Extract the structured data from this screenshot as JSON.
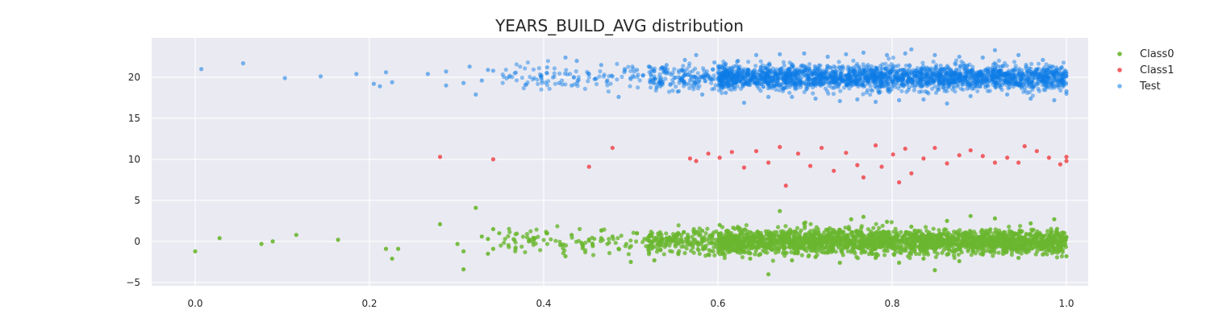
{
  "chart_data": {
    "type": "scatter",
    "title": "YEARS_BUILD_AVG distribution",
    "xlabel": "",
    "ylabel": "",
    "xlim": [
      -0.05,
      1.025
    ],
    "ylim": [
      -5.4,
      24.8
    ],
    "x_ticks": [
      0.0,
      0.2,
      0.4,
      0.6,
      0.8,
      1.0
    ],
    "x_tick_labels": [
      "0.0",
      "0.2",
      "0.4",
      "0.6",
      "0.8",
      "1.0"
    ],
    "y_ticks": [
      -5,
      0,
      5,
      10,
      15,
      20
    ],
    "y_tick_labels": [
      "−5",
      "0",
      "5",
      "10",
      "15",
      "20"
    ],
    "grid": true,
    "legend_position": "outside top-right",
    "background": "#eaeaf2",
    "series": [
      {
        "name": "Class0",
        "color": "#6ab72f",
        "center": 0,
        "points": [
          [
            0.0,
            -1.2
          ],
          [
            0.028,
            0.4
          ],
          [
            0.076,
            -0.3
          ],
          [
            0.089,
            0.0
          ],
          [
            0.116,
            0.8
          ],
          [
            0.164,
            0.2
          ],
          [
            0.219,
            -0.9
          ],
          [
            0.226,
            -2.1
          ],
          [
            0.233,
            -0.9
          ],
          [
            0.281,
            2.1
          ],
          [
            0.301,
            -0.3
          ],
          [
            0.308,
            -1.2
          ],
          [
            0.308,
            -3.4
          ],
          [
            0.322,
            4.1
          ],
          [
            0.329,
            0.6
          ],
          [
            0.336,
            -1.5
          ],
          [
            0.336,
            0.3
          ],
          [
            0.342,
            1.5
          ],
          [
            0.342,
            -0.9
          ],
          [
            0.349,
            1.0
          ],
          [
            0.384,
            0.2
          ],
          [
            0.39,
            0.4
          ],
          [
            0.404,
            1.0
          ],
          [
            0.425,
            -1.8
          ],
          [
            0.432,
            0.8
          ],
          [
            0.445,
            -0.6
          ],
          [
            0.452,
            0.1
          ],
          [
            0.466,
            0.4
          ],
          [
            0.479,
            0.6
          ],
          [
            0.486,
            -0.9
          ],
          [
            0.5,
            -2.5
          ],
          [
            0.507,
            1.0
          ],
          [
            0.521,
            0.6
          ],
          [
            0.527,
            -2.3
          ],
          [
            0.541,
            0.4
          ],
          [
            0.555,
            0.9
          ],
          [
            0.568,
            -0.4
          ],
          [
            0.582,
            1.3
          ],
          [
            0.589,
            -1.6
          ],
          [
            0.602,
            2.0
          ],
          [
            0.616,
            -0.1
          ],
          [
            0.623,
            1.6
          ],
          [
            0.637,
            -2.1
          ],
          [
            0.644,
            0.5
          ],
          [
            0.658,
            -4.0
          ],
          [
            0.671,
            3.7
          ],
          [
            0.685,
            -2.3
          ],
          [
            0.699,
            2.2
          ],
          [
            0.712,
            -1.9
          ],
          [
            0.726,
            1.4
          ],
          [
            0.74,
            -2.6
          ],
          [
            0.753,
            2.7
          ],
          [
            0.767,
            3.0
          ],
          [
            0.781,
            -2.0
          ],
          [
            0.794,
            2.4
          ],
          [
            0.808,
            -2.6
          ],
          [
            0.822,
            1.8
          ],
          [
            0.836,
            -2.1
          ],
          [
            0.849,
            -3.5
          ],
          [
            0.863,
            2.5
          ],
          [
            0.877,
            -2.4
          ],
          [
            0.89,
            3.1
          ],
          [
            0.904,
            -1.6
          ],
          [
            0.918,
            2.8
          ],
          [
            0.932,
            0.3
          ],
          [
            0.945,
            -2.0
          ],
          [
            0.959,
            2.2
          ],
          [
            0.973,
            -1.6
          ],
          [
            0.986,
            2.7
          ],
          [
            1.0,
            0.5
          ],
          [
            1.0,
            -1.8
          ]
        ]
      },
      {
        "name": "Class1",
        "color": "#ef5054",
        "center": 10,
        "points": [
          [
            0.281,
            10.3
          ],
          [
            0.342,
            10.0
          ],
          [
            0.452,
            9.1
          ],
          [
            0.479,
            11.4
          ],
          [
            0.568,
            10.1
          ],
          [
            0.575,
            9.8
          ],
          [
            0.589,
            10.7
          ],
          [
            0.602,
            10.2
          ],
          [
            0.616,
            10.9
          ],
          [
            0.63,
            9.0
          ],
          [
            0.644,
            11.0
          ],
          [
            0.658,
            9.6
          ],
          [
            0.671,
            11.5
          ],
          [
            0.678,
            6.8
          ],
          [
            0.692,
            10.7
          ],
          [
            0.706,
            9.2
          ],
          [
            0.719,
            11.4
          ],
          [
            0.733,
            8.6
          ],
          [
            0.747,
            10.8
          ],
          [
            0.76,
            9.3
          ],
          [
            0.767,
            7.8
          ],
          [
            0.781,
            11.7
          ],
          [
            0.788,
            9.1
          ],
          [
            0.801,
            10.6
          ],
          [
            0.808,
            7.2
          ],
          [
            0.815,
            11.3
          ],
          [
            0.822,
            8.3
          ],
          [
            0.836,
            10.1
          ],
          [
            0.849,
            11.4
          ],
          [
            0.863,
            9.5
          ],
          [
            0.877,
            10.5
          ],
          [
            0.89,
            11.1
          ],
          [
            0.904,
            10.4
          ],
          [
            0.918,
            9.6
          ],
          [
            0.932,
            10.2
          ],
          [
            0.945,
            9.6
          ],
          [
            0.952,
            11.6
          ],
          [
            0.966,
            11.0
          ],
          [
            0.98,
            10.2
          ],
          [
            0.993,
            9.4
          ],
          [
            1.0,
            10.3
          ],
          [
            1.0,
            9.8
          ]
        ]
      },
      {
        "name": "Test",
        "color": "#0d7ce6",
        "center": 20,
        "points": [
          [
            0.007,
            21.0
          ],
          [
            0.055,
            21.7
          ],
          [
            0.103,
            19.9
          ],
          [
            0.144,
            20.1
          ],
          [
            0.185,
            20.4
          ],
          [
            0.205,
            19.2
          ],
          [
            0.212,
            18.9
          ],
          [
            0.219,
            20.6
          ],
          [
            0.226,
            19.4
          ],
          [
            0.267,
            20.4
          ],
          [
            0.288,
            20.7
          ],
          [
            0.288,
            19.0
          ],
          [
            0.308,
            19.3
          ],
          [
            0.315,
            21.3
          ],
          [
            0.322,
            17.9
          ],
          [
            0.329,
            19.6
          ],
          [
            0.336,
            20.9
          ],
          [
            0.342,
            20.8
          ],
          [
            0.404,
            21.2
          ],
          [
            0.418,
            19.3
          ],
          [
            0.425,
            22.4
          ],
          [
            0.432,
            19.0
          ],
          [
            0.438,
            22.0
          ],
          [
            0.452,
            20.4
          ],
          [
            0.466,
            21.5
          ],
          [
            0.473,
            19.6
          ],
          [
            0.479,
            20.1
          ],
          [
            0.486,
            17.6
          ],
          [
            0.493,
            21.0
          ],
          [
            0.507,
            20.9
          ],
          [
            0.514,
            20.2
          ],
          [
            0.527,
            19.8
          ],
          [
            0.534,
            18.9
          ],
          [
            0.541,
            21.5
          ],
          [
            0.555,
            18.3
          ],
          [
            0.562,
            22.1
          ],
          [
            0.575,
            22.7
          ],
          [
            0.582,
            17.9
          ],
          [
            0.596,
            21.8
          ],
          [
            0.609,
            18.1
          ],
          [
            0.623,
            22.0
          ],
          [
            0.63,
            16.9
          ],
          [
            0.644,
            22.7
          ],
          [
            0.658,
            17.6
          ],
          [
            0.671,
            22.8
          ],
          [
            0.685,
            17.6
          ],
          [
            0.699,
            22.9
          ],
          [
            0.712,
            17.4
          ],
          [
            0.726,
            22.5
          ],
          [
            0.74,
            17.1
          ],
          [
            0.747,
            22.8
          ],
          [
            0.76,
            17.3
          ],
          [
            0.767,
            23.0
          ],
          [
            0.781,
            17.0
          ],
          [
            0.794,
            22.7
          ],
          [
            0.808,
            17.2
          ],
          [
            0.815,
            22.9
          ],
          [
            0.822,
            23.4
          ],
          [
            0.836,
            17.3
          ],
          [
            0.849,
            22.7
          ],
          [
            0.863,
            16.8
          ],
          [
            0.877,
            22.5
          ],
          [
            0.89,
            17.7
          ],
          [
            0.904,
            22.4
          ],
          [
            0.918,
            23.3
          ],
          [
            0.932,
            17.9
          ],
          [
            0.945,
            22.7
          ],
          [
            0.959,
            17.4
          ],
          [
            0.973,
            22.1
          ],
          [
            0.986,
            17.2
          ],
          [
            1.0,
            18.3
          ],
          [
            1.0,
            18.0
          ]
        ]
      }
    ]
  }
}
